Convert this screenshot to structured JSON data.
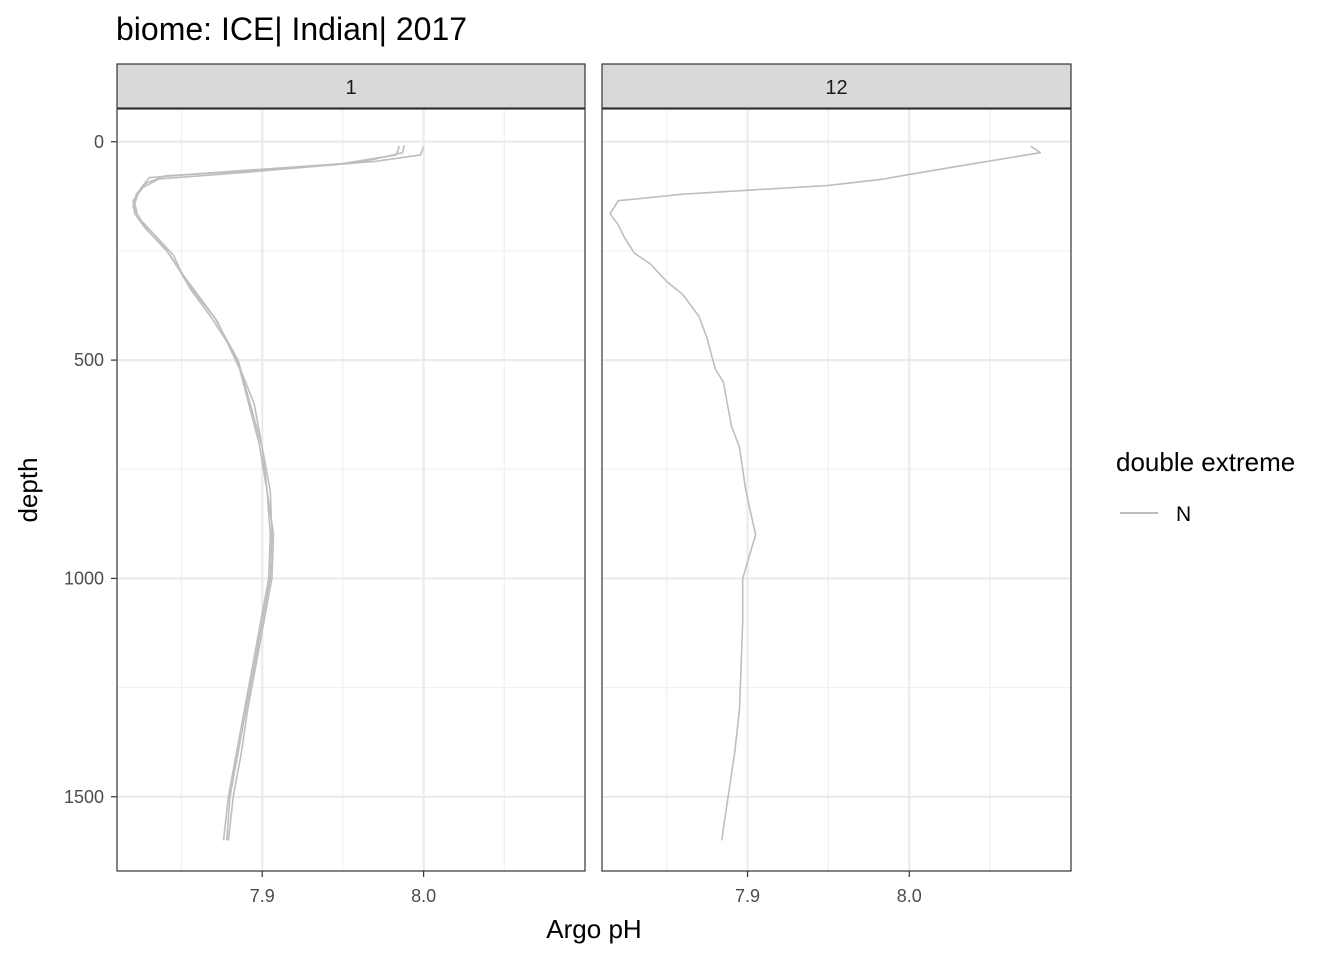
{
  "chart_data": {
    "type": "line",
    "title": "biome: ICE| Indian| 2017",
    "xlabel": "Argo pH",
    "ylabel": "depth",
    "x_ticks": [
      7.9,
      8.0
    ],
    "x_tick_labels": [
      "7.9",
      "8.0"
    ],
    "y_ticks": [
      0,
      500,
      1000,
      1500
    ],
    "y_tick_labels": [
      "0",
      "500",
      "1000",
      "1500"
    ],
    "y_reversed": true,
    "grid": true,
    "legend": {
      "title": "double extreme",
      "position": "right",
      "entries": [
        {
          "label": "N",
          "color": "#bebebe"
        }
      ]
    },
    "line_color": "#bebebe",
    "panels": [
      {
        "strip": "1",
        "xlim": [
          7.81,
          8.1
        ],
        "ylim": [
          1670,
          -75
        ],
        "series": [
          {
            "points": [
              [
                7.985,
                10
              ],
              [
                7.983,
                30
              ],
              [
                7.95,
                50
              ],
              [
                7.9,
                65
              ],
              [
                7.84,
                78
              ],
              [
                7.828,
                95
              ],
              [
                7.822,
                120
              ],
              [
                7.82,
                150
              ],
              [
                7.825,
                180
              ],
              [
                7.835,
                220
              ],
              [
                7.845,
                260
              ],
              [
                7.85,
                300
              ],
              [
                7.86,
                350
              ],
              [
                7.87,
                400
              ],
              [
                7.885,
                500
              ],
              [
                7.9,
                700
              ],
              [
                7.905,
                800
              ],
              [
                7.906,
                900
              ],
              [
                7.905,
                1000
              ],
              [
                7.9,
                1100
              ],
              [
                7.895,
                1200
              ],
              [
                7.89,
                1300
              ],
              [
                7.885,
                1400
              ],
              [
                7.88,
                1500
              ],
              [
                7.878,
                1600
              ]
            ]
          },
          {
            "points": [
              [
                7.988,
                8
              ],
              [
                7.987,
                25
              ],
              [
                7.96,
                48
              ],
              [
                7.89,
                70
              ],
              [
                7.836,
                85
              ],
              [
                7.826,
                105
              ],
              [
                7.82,
                135
              ],
              [
                7.821,
                165
              ],
              [
                7.828,
                200
              ],
              [
                7.84,
                245
              ],
              [
                7.848,
                290
              ],
              [
                7.856,
                340
              ],
              [
                7.868,
                400
              ],
              [
                7.882,
                480
              ],
              [
                7.895,
                600
              ],
              [
                7.9,
                700
              ],
              [
                7.903,
                800
              ],
              [
                7.905,
                900
              ],
              [
                7.904,
                1000
              ],
              [
                7.899,
                1100
              ],
              [
                7.894,
                1200
              ],
              [
                7.889,
                1300
              ],
              [
                7.884,
                1400
              ],
              [
                7.879,
                1500
              ],
              [
                7.876,
                1600
              ]
            ]
          },
          {
            "points": [
              [
                8.0,
                12
              ],
              [
                7.998,
                30
              ],
              [
                7.97,
                45
              ],
              [
                7.88,
                68
              ],
              [
                7.83,
                82
              ],
              [
                7.824,
                110
              ],
              [
                7.821,
                140
              ],
              [
                7.823,
                175
              ],
              [
                7.832,
                215
              ],
              [
                7.842,
                255
              ],
              [
                7.85,
                300
              ],
              [
                7.858,
                345
              ],
              [
                7.872,
                410
              ],
              [
                7.886,
                520
              ],
              [
                7.898,
                690
              ],
              [
                7.903,
                800
              ],
              [
                7.907,
                900
              ],
              [
                7.906,
                1000
              ],
              [
                7.901,
                1100
              ],
              [
                7.896,
                1200
              ],
              [
                7.891,
                1300
              ],
              [
                7.887,
                1400
              ],
              [
                7.882,
                1500
              ],
              [
                7.879,
                1600
              ]
            ]
          }
        ]
      },
      {
        "strip": "12",
        "xlim": [
          7.81,
          8.1
        ],
        "ylim": [
          1670,
          -75
        ],
        "series": [
          {
            "points": [
              [
                8.075,
                10
              ],
              [
                8.081,
                25
              ],
              [
                8.04,
                50
              ],
              [
                7.992,
                80
              ],
              [
                7.985,
                85
              ],
              [
                7.95,
                100
              ],
              [
                7.86,
                120
              ],
              [
                7.82,
                135
              ],
              [
                7.815,
                165
              ],
              [
                7.82,
                190
              ],
              [
                7.824,
                220
              ],
              [
                7.83,
                255
              ],
              [
                7.84,
                280
              ],
              [
                7.845,
                300
              ],
              [
                7.85,
                320
              ],
              [
                7.86,
                350
              ],
              [
                7.87,
                400
              ],
              [
                7.875,
                450
              ],
              [
                7.88,
                520
              ],
              [
                7.885,
                550
              ],
              [
                7.89,
                650
              ],
              [
                7.895,
                700
              ],
              [
                7.899,
                800
              ],
              [
                7.905,
                900
              ],
              [
                7.897,
                1000
              ],
              [
                7.897,
                1100
              ],
              [
                7.896,
                1200
              ],
              [
                7.895,
                1300
              ],
              [
                7.892,
                1400
              ],
              [
                7.888,
                1500
              ],
              [
                7.884,
                1600
              ]
            ]
          }
        ]
      }
    ]
  }
}
